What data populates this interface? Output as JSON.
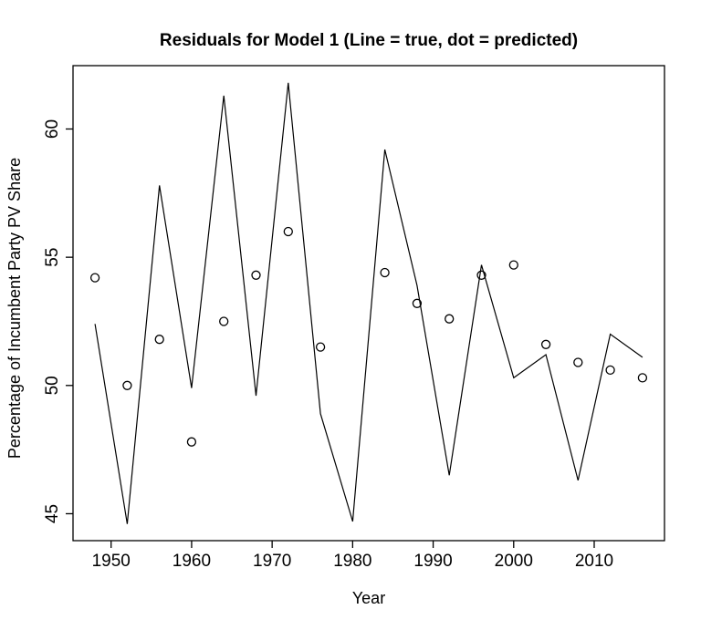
{
  "title": "Residuals for Model 1 (Line = true, dot = predicted)",
  "chart_data": {
    "type": "line",
    "title": "Residuals for Model 1 (Line = true, dot = predicted)",
    "xlabel": "Year",
    "ylabel": "Percentage of Incumbent Party PV Share",
    "x": [
      1948,
      1952,
      1956,
      1960,
      1964,
      1968,
      1972,
      1976,
      1980,
      1984,
      1988,
      1992,
      1996,
      2000,
      2004,
      2008,
      2012,
      2016
    ],
    "series": [
      {
        "name": "true",
        "style": "line",
        "values": [
          52.4,
          44.6,
          57.8,
          49.9,
          61.3,
          49.6,
          61.8,
          48.9,
          44.7,
          59.2,
          53.9,
          46.5,
          54.7,
          50.3,
          51.2,
          46.3,
          52.0,
          51.1
        ]
      },
      {
        "name": "predicted",
        "style": "open-points",
        "values": [
          54.2,
          50.0,
          51.8,
          47.8,
          52.5,
          54.3,
          56.0,
          51.5,
          null,
          54.4,
          53.2,
          52.6,
          54.3,
          54.7,
          51.6,
          50.9,
          50.6,
          50.3
        ]
      }
    ],
    "x_ticks": [
      1950,
      1960,
      1970,
      1980,
      1990,
      2000,
      2010
    ],
    "y_ticks": [
      45,
      50,
      55,
      60
    ],
    "xlim": [
      1945.27,
      2018.73
    ],
    "ylim": [
      43.95,
      62.47
    ],
    "grid": false,
    "legend_position": "none",
    "line_color": "#000000",
    "point_color": "#000000",
    "box_color": "#000000",
    "background": "#ffffff"
  }
}
